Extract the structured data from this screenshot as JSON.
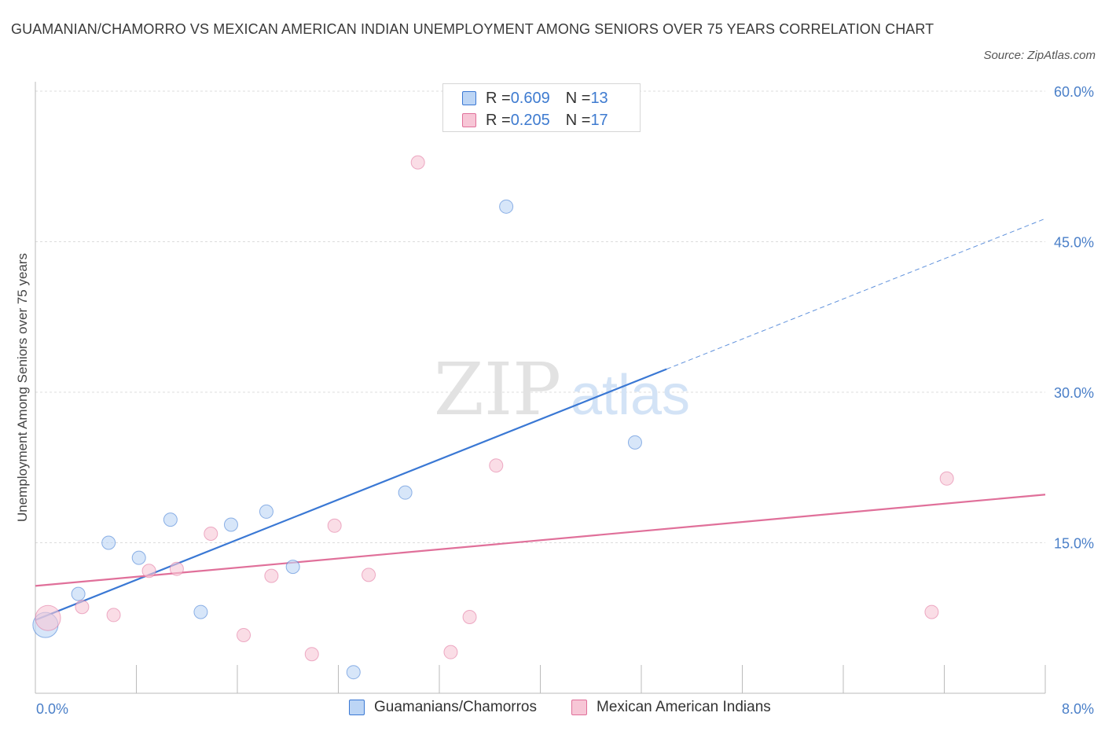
{
  "title": "GUAMANIAN/CHAMORRO VS MEXICAN AMERICAN INDIAN UNEMPLOYMENT AMONG SENIORS OVER 75 YEARS CORRELATION CHART",
  "source": "Source: ZipAtlas.com",
  "watermark": {
    "zip": "ZIP",
    "atlas": "atlas"
  },
  "colors": {
    "blue": "#3a78d4",
    "blue_fill": "#bcd5f5",
    "pink": "#e0709a",
    "pink_fill": "#f7c6d6",
    "grid": "#dcdcdc",
    "tick_text": "#4a7fc8"
  },
  "legend": {
    "rows": [
      {
        "r_label": "R = ",
        "r_value": "0.609",
        "n_label": "N = ",
        "n_value": "13"
      },
      {
        "r_label": "R = ",
        "r_value": "0.205",
        "n_label": "N = ",
        "n_value": "17"
      }
    ]
  },
  "bottom_legend": [
    "Guamanians/Chamorros",
    "Mexican American Indians"
  ],
  "chart_data": {
    "type": "scatter",
    "title": "GUAMANIAN/CHAMORRO VS MEXICAN AMERICAN INDIAN UNEMPLOYMENT AMONG SENIORS OVER 75 YEARS CORRELATION CHART",
    "xlabel": "",
    "ylabel": "Unemployment Among Seniors over 75 years",
    "xlim": [
      0,
      8
    ],
    "ylim": [
      0,
      60
    ],
    "x_tick_labels": [
      "0.0%",
      "8.0%"
    ],
    "y_ticks": [
      15,
      30,
      45,
      60
    ],
    "y_tick_labels": [
      "15.0%",
      "30.0%",
      "45.0%",
      "60.0%"
    ],
    "series": [
      {
        "name": "Guamanians/Chamorros",
        "r": 0.609,
        "n": 13,
        "points": [
          {
            "x": 0.08,
            "y": 6.8,
            "size": "large"
          },
          {
            "x": 0.34,
            "y": 9.9
          },
          {
            "x": 0.58,
            "y": 15.0
          },
          {
            "x": 0.82,
            "y": 13.5
          },
          {
            "x": 1.07,
            "y": 17.3
          },
          {
            "x": 1.31,
            "y": 8.1
          },
          {
            "x": 1.55,
            "y": 16.8
          },
          {
            "x": 1.83,
            "y": 18.1
          },
          {
            "x": 2.04,
            "y": 12.6
          },
          {
            "x": 2.52,
            "y": 2.1
          },
          {
            "x": 2.93,
            "y": 20.0
          },
          {
            "x": 3.73,
            "y": 48.5
          },
          {
            "x": 4.75,
            "y": 25.0
          }
        ],
        "trend": {
          "x0": 0.0,
          "y0": 7.3,
          "x1": 5.0,
          "y1": 32.3,
          "dash_to_x": 8.0,
          "dash_to_y": 47.3
        }
      },
      {
        "name": "Mexican American Indians",
        "r": 0.205,
        "n": 17,
        "points": [
          {
            "x": 0.1,
            "y": 7.5,
            "size": "large"
          },
          {
            "x": 0.37,
            "y": 8.6
          },
          {
            "x": 0.62,
            "y": 7.8
          },
          {
            "x": 0.9,
            "y": 12.2
          },
          {
            "x": 1.12,
            "y": 12.4
          },
          {
            "x": 1.39,
            "y": 15.9
          },
          {
            "x": 1.65,
            "y": 5.8
          },
          {
            "x": 1.87,
            "y": 11.7
          },
          {
            "x": 2.19,
            "y": 3.9
          },
          {
            "x": 2.37,
            "y": 16.7
          },
          {
            "x": 2.64,
            "y": 11.8
          },
          {
            "x": 3.03,
            "y": 52.9
          },
          {
            "x": 3.29,
            "y": 4.1
          },
          {
            "x": 3.44,
            "y": 7.6
          },
          {
            "x": 3.65,
            "y": 22.7
          },
          {
            "x": 7.1,
            "y": 8.1
          },
          {
            "x": 7.22,
            "y": 21.4
          }
        ],
        "trend": {
          "x0": 0.0,
          "y0": 10.7,
          "x1": 8.0,
          "y1": 19.8
        }
      }
    ]
  }
}
